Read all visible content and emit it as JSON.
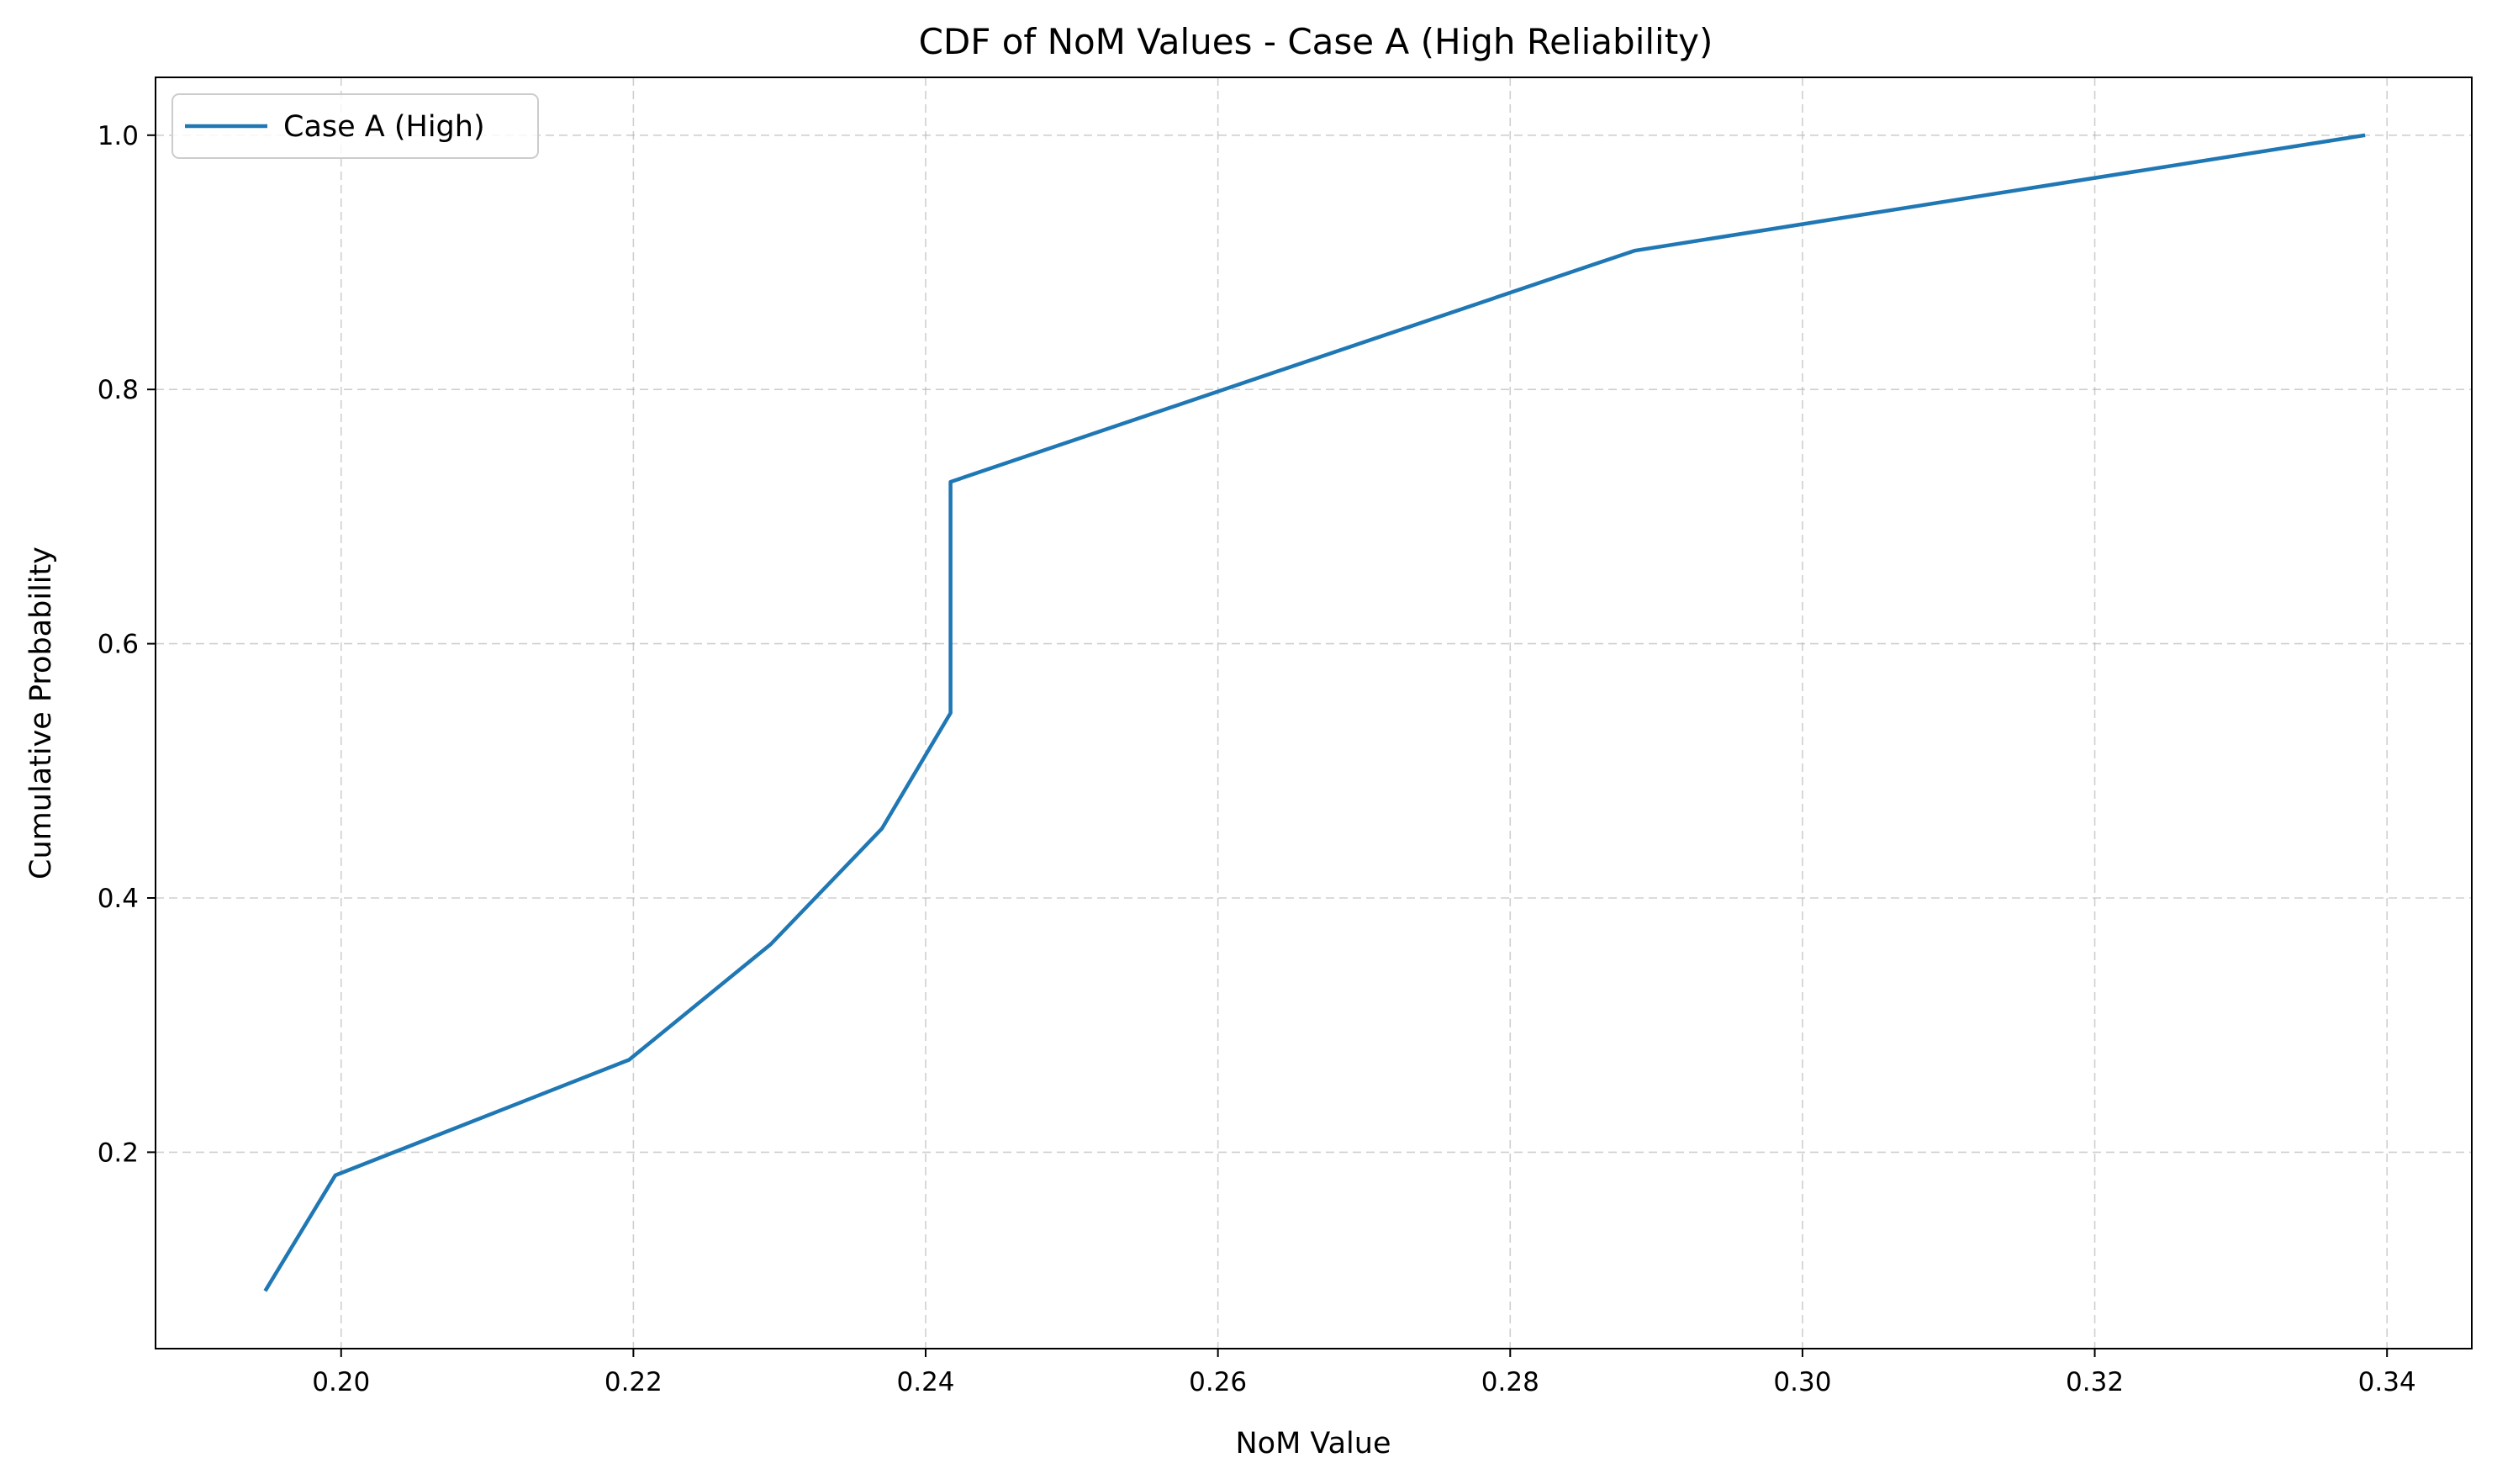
{
  "chart_data": {
    "type": "line",
    "title": "CDF of NoM Values - Case A (High Reliability)",
    "xlabel": "NoM Value",
    "ylabel": "Cumulative Probability",
    "xlim": [
      0.1873,
      0.3458
    ],
    "ylim": [
      0.0455,
      1.0455
    ],
    "xticks": [
      0.2,
      0.22,
      0.24,
      0.26,
      0.28,
      0.3,
      0.32,
      0.34
    ],
    "xtick_labels": [
      "0.20",
      "0.22",
      "0.24",
      "0.26",
      "0.28",
      "0.30",
      "0.32",
      "0.34"
    ],
    "yticks": [
      0.2,
      0.4,
      0.6,
      0.8,
      1.0
    ],
    "ytick_labels": [
      "0.2",
      "0.4",
      "0.6",
      "0.8",
      "1.0"
    ],
    "grid": true,
    "legend_position": "top-left",
    "series": [
      {
        "name": "Case A (High)",
        "color": "#1f77b4",
        "x": [
          0.1948,
          0.1996,
          0.2197,
          0.2294,
          0.237,
          0.2417,
          0.2417,
          0.2417,
          0.2885,
          0.3385
        ],
        "y": [
          0.0909,
          0.1818,
          0.2727,
          0.3636,
          0.4545,
          0.5455,
          0.6364,
          0.7273,
          0.9091,
          1.0
        ]
      }
    ]
  }
}
